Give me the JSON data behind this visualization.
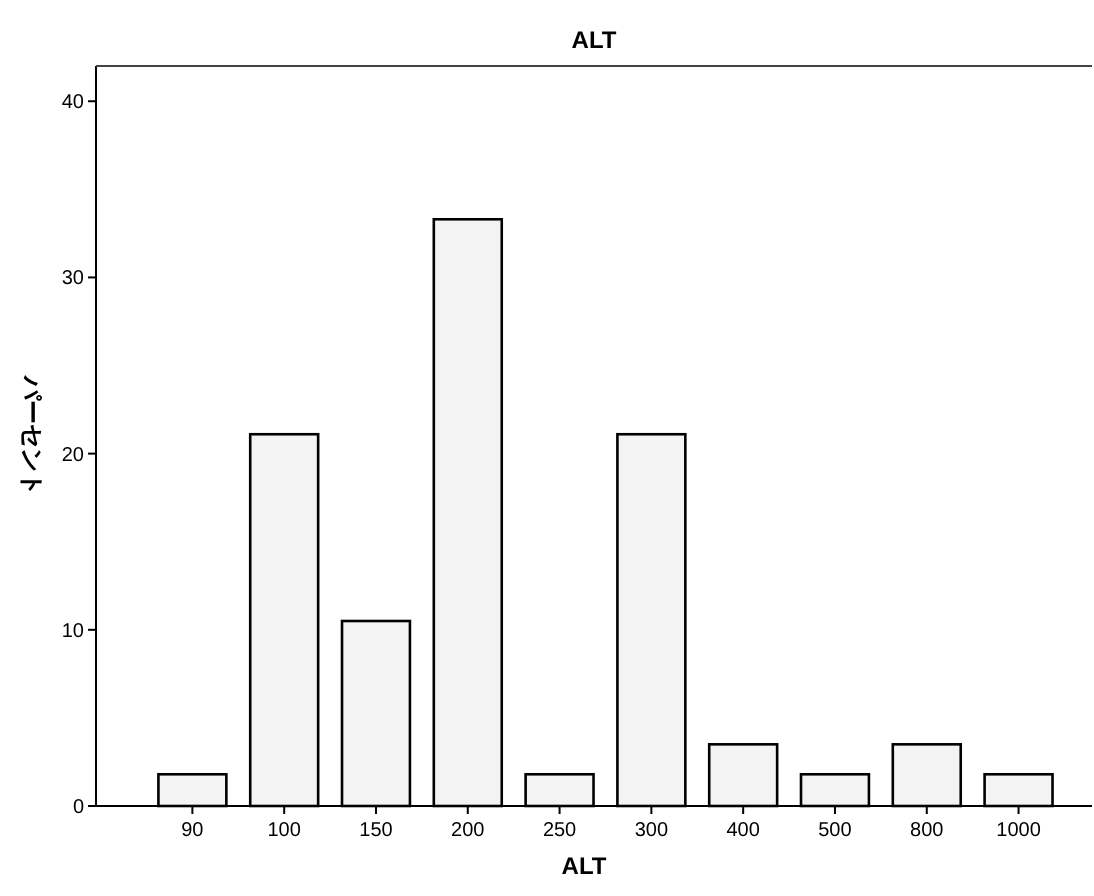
{
  "chart_data": {
    "type": "bar",
    "title": "ALT",
    "xlabel": "ALT",
    "ylabel": "パーセント",
    "categories": [
      "90",
      "100",
      "150",
      "200",
      "250",
      "300",
      "400",
      "500",
      "800",
      "1000"
    ],
    "values": [
      1.8,
      21.1,
      10.5,
      33.3,
      1.8,
      21.1,
      3.5,
      1.8,
      3.5,
      1.8
    ],
    "color": "#f3f3f3",
    "ylim": [
      0,
      42
    ],
    "yticks": [
      0,
      10,
      20,
      30,
      40
    ],
    "grid": false
  }
}
